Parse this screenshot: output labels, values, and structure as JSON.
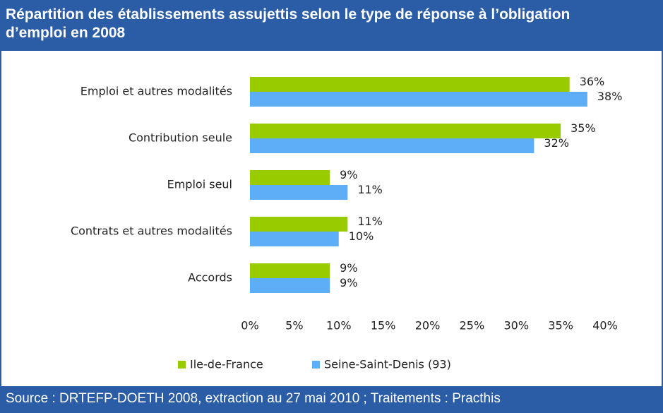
{
  "chart_data": {
    "type": "hbar",
    "title": "Répartition des établissements assujettis selon le type de réponse à l’obligation d’emploi en 2008",
    "source": "Source : DRTEFP-DOETH 2008, extraction au 27 mai 2010 ; Traitements : Practhis",
    "categories": [
      "Emploi et autres modalités",
      "Contribution seule",
      "Emploi seul",
      "Contrats et autres modalités",
      "Accords"
    ],
    "series": [
      {
        "name": "Ile-de-France",
        "color": "#99cc00",
        "values": [
          36,
          35,
          9,
          11,
          9
        ],
        "value_labels": [
          "36%",
          "35%",
          "9%",
          "11%",
          "9%"
        ]
      },
      {
        "name": "Seine-Saint-Denis (93)",
        "color": "#5eadf7",
        "values": [
          38,
          32,
          11,
          10,
          9
        ],
        "value_labels": [
          "38%",
          "32%",
          "11%",
          "10%",
          "9%"
        ]
      }
    ],
    "xlim": [
      0,
      40
    ],
    "xticks": [
      {
        "value": 0,
        "label": "0%"
      },
      {
        "value": 5,
        "label": "5%"
      },
      {
        "value": 10,
        "label": "10%"
      },
      {
        "value": 15,
        "label": "15%"
      },
      {
        "value": 20,
        "label": "20%"
      },
      {
        "value": 25,
        "label": "25%"
      },
      {
        "value": 30,
        "label": "30%"
      },
      {
        "value": 35,
        "label": "35%"
      },
      {
        "value": 40,
        "label": "40%"
      }
    ],
    "legend": "bottom"
  }
}
